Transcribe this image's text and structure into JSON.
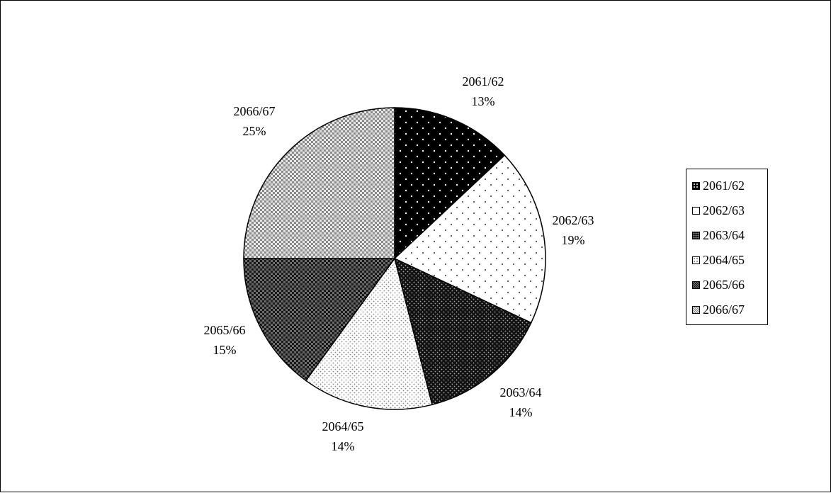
{
  "chart_data": {
    "type": "pie",
    "title": "",
    "slices": [
      {
        "label": "2061/62",
        "value": 13,
        "pct_label": "13%",
        "pattern": "dots-on-black",
        "fill": "#000000",
        "dot": "#ffffff"
      },
      {
        "label": "2062/63",
        "value": 19,
        "pct_label": "19%",
        "pattern": "sparse-dots-on-white",
        "fill": "#ffffff",
        "dot": "#555555"
      },
      {
        "label": "2063/64",
        "value": 14,
        "pct_label": "14%",
        "pattern": "dense-dots-on-black",
        "fill": "#111111",
        "dot": "#bbbbbb"
      },
      {
        "label": "2064/65",
        "value": 14,
        "pct_label": "14%",
        "pattern": "fine-dots-on-white",
        "fill": "#ffffff",
        "dot": "#888888"
      },
      {
        "label": "2065/66",
        "value": 15,
        "pct_label": "15%",
        "pattern": "checker-dark",
        "fill": "#555555",
        "dot": "#111111"
      },
      {
        "label": "2066/67",
        "value": 25,
        "pct_label": "25%",
        "pattern": "checker-light",
        "fill": "#d8d8d8",
        "dot": "#7a7a7a"
      }
    ],
    "legend_position": "right"
  }
}
